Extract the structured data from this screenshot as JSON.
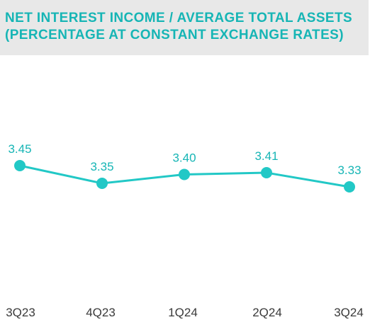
{
  "colors": {
    "accent": "#22c8c6",
    "title": "#16b5b5",
    "title_background": "#e8e8e8",
    "tick_label": "#3a3a3a"
  },
  "header": {
    "title_line1": "NET INTEREST INCOME / AVERAGE TOTAL ASSETS",
    "title_line2": "(PERCENTAGE AT CONSTANT EXCHANGE RATES)"
  },
  "chart_data": {
    "type": "line",
    "title": "NET INTEREST INCOME / AVERAGE TOTAL ASSETS (PERCENTAGE AT CONSTANT EXCHANGE RATES)",
    "categories": [
      "3Q23",
      "4Q23",
      "1Q24",
      "2Q24",
      "3Q24"
    ],
    "series": [
      {
        "values": [
          3.45,
          3.35,
          3.4,
          3.41,
          3.33
        ],
        "labels": [
          "3.45",
          "3.35",
          "3.40",
          "3.41",
          "3.33"
        ]
      }
    ],
    "xlabel": "",
    "ylabel": "",
    "grid": false,
    "data_labels": true
  }
}
